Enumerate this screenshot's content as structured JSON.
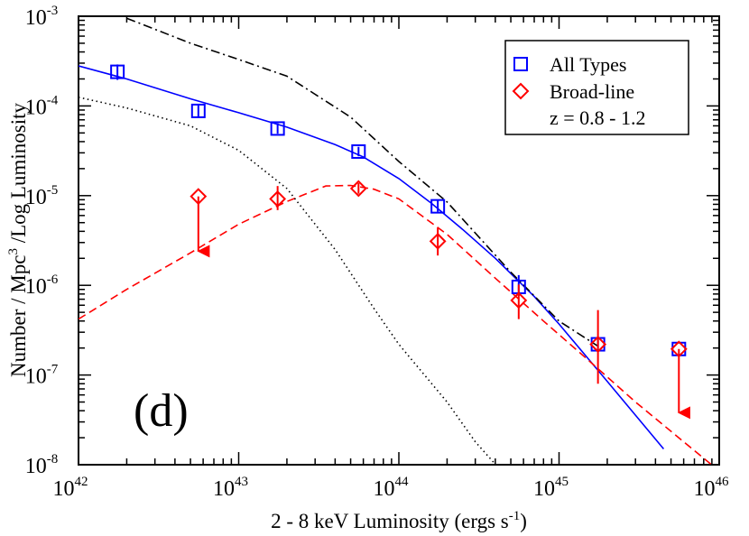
{
  "chart_data": {
    "type": "scatter",
    "panel_label": "(d)",
    "xlabel": {
      "main": "2 - 8 keV Luminosity  (ergs s",
      "sup": "-1",
      "close": ")"
    },
    "ylabel": {
      "main": "Number / Mpc",
      "sup": "3",
      "rest": " /Log Luminosity"
    },
    "x_scale": "log",
    "y_scale": "log",
    "xlim": [
      1e+42,
      1e+46
    ],
    "ylim": [
      1e-08,
      0.001
    ],
    "x_ticks": [
      {
        "value": 1e+42,
        "base": "10",
        "exp": "42"
      },
      {
        "value": 1e+43,
        "base": "10",
        "exp": "43"
      },
      {
        "value": 1e+44,
        "base": "10",
        "exp": "44"
      },
      {
        "value": 1e+45,
        "base": "10",
        "exp": "45"
      },
      {
        "value": 1e+46,
        "base": "10",
        "exp": "46"
      }
    ],
    "y_ticks": [
      {
        "value": 1e-08,
        "base": "10",
        "exp": "-8"
      },
      {
        "value": 1e-07,
        "base": "10",
        "exp": "-7"
      },
      {
        "value": 1e-06,
        "base": "10",
        "exp": "-6"
      },
      {
        "value": 1e-05,
        "base": "10",
        "exp": "-5"
      },
      {
        "value": 0.0001,
        "base": "10",
        "exp": "-4"
      },
      {
        "value": 0.001,
        "base": "10",
        "exp": "-3"
      }
    ],
    "legend": {
      "position": "top-right",
      "entries": [
        {
          "label": "All Types",
          "marker": "square",
          "color": "#0000ff"
        },
        {
          "label": "Broad-line",
          "marker": "diamond",
          "color": "#ff0000"
        }
      ],
      "note": "z = 0.8 - 1.2"
    },
    "series": [
      {
        "name": "All Types",
        "marker": "square",
        "color": "#0000ff",
        "points": [
          {
            "x": 1.75e+42,
            "y": 0.00024,
            "ylo": 0.000195,
            "yhi": 0.00029
          },
          {
            "x": 5.6e+42,
            "y": 8.8e-05,
            "ylo": 7.4e-05,
            "yhi": 0.000105
          },
          {
            "x": 1.75e+43,
            "y": 5.6e-05,
            "ylo": 4.9e-05,
            "yhi": 6.4e-05
          },
          {
            "x": 5.6e+43,
            "y": 3.1e-05,
            "ylo": 2.75e-05,
            "yhi": 3.5e-05
          },
          {
            "x": 1.75e+44,
            "y": 7.6e-06,
            "ylo": 6.6e-06,
            "yhi": 8.8e-06
          },
          {
            "x": 5.6e+44,
            "y": 9.6e-07,
            "ylo": 7.6e-07,
            "yhi": 1.3e-06
          },
          {
            "x": 1.75e+45,
            "y": 2.2e-07,
            "ylo": 1.9e-07,
            "yhi": 2.5e-07
          },
          {
            "x": 5.6e+45,
            "y": 1.95e-07
          }
        ]
      },
      {
        "name": "Broad-line",
        "marker": "diamond",
        "color": "#ff0000",
        "points": [
          {
            "x": 5.6e+42,
            "y": 9.8e-06,
            "upper_limit": true,
            "arrow_to": 2.4e-06
          },
          {
            "x": 1.75e+43,
            "y": 9.2e-06,
            "ylo": 6.9e-06,
            "yhi": 1.28e-05
          },
          {
            "x": 5.6e+43,
            "y": 1.2e-05,
            "ylo": 1.05e-05,
            "yhi": 1.38e-05
          },
          {
            "x": 1.75e+44,
            "y": 3.1e-06,
            "ylo": 2.15e-06,
            "yhi": 4.4e-06
          },
          {
            "x": 5.6e+44,
            "y": 6.8e-07,
            "ylo": 4.2e-07,
            "yhi": 1.02e-06
          },
          {
            "x": 1.75e+45,
            "y": 2.2e-07,
            "ylo": 8e-08,
            "yhi": 5.3e-07
          },
          {
            "x": 5.6e+45,
            "y": 1.95e-07,
            "upper_limit": true,
            "arrow_to": 3.8e-08
          }
        ]
      }
    ],
    "curves": [
      {
        "name": "All Types fit",
        "style": "solid",
        "color": "#0000ff",
        "x": [
          1e+42,
          2e+42,
          5e+42,
          1e+43,
          2e+43,
          4e+43,
          6e+43,
          1e+44,
          1.6e+44,
          2.5e+44,
          4e+44,
          7e+44,
          1e+45,
          2e+45,
          4.5e+45
        ],
        "y": [
          0.00028,
          0.0002,
          0.00012,
          8.4e-05,
          5.8e-05,
          3.7e-05,
          2.7e-05,
          1.55e-05,
          8.2e-06,
          4.2e-06,
          2e-06,
          7.5e-07,
          3.7e-07,
          8.5e-08,
          1.5e-08
        ]
      },
      {
        "name": "Broad-line fit",
        "style": "dashed",
        "color": "#ff0000",
        "x": [
          1e+42,
          2e+42,
          5e+42,
          1e+43,
          2e+43,
          3.5e+43,
          5e+43,
          7e+43,
          1e+44,
          2e+44,
          4e+44,
          8e+44,
          1.5e+45,
          3e+45,
          6e+45,
          1e+46
        ],
        "y": [
          4.2e-07,
          9e-07,
          2.3e-06,
          4.8e-06,
          8.6e-06,
          1.28e-05,
          1.3e-05,
          1.18e-05,
          9.2e-06,
          3.7e-06,
          1.2e-06,
          4e-07,
          1.5e-07,
          5e-08,
          1.8e-08,
          8.5e-09
        ]
      },
      {
        "name": "Dot-dash model",
        "style": "dashdot",
        "color": "#000000",
        "x": [
          2e+42,
          5e+42,
          1e+43,
          2e+43,
          5e+43,
          1e+44,
          2e+44,
          5e+44,
          1e+45,
          1.75e+45
        ],
        "y": [
          0.00095,
          0.0005,
          0.00033,
          0.000215,
          7.5e-05,
          2.4e-05,
          8.5e-06,
          1.4e-06,
          4e-07,
          2.1e-07
        ]
      },
      {
        "name": "Dotted model",
        "style": "dotted",
        "color": "#000000",
        "x": [
          1e+42,
          2e+42,
          5e+42,
          1e+43,
          2e+43,
          4e+43,
          7e+43,
          1e+44,
          2e+44,
          3e+44,
          4.5e+44
        ],
        "y": [
          0.000125,
          9.5e-05,
          6e-05,
          3.2e-05,
          1.2e-05,
          2.5e-06,
          5.5e-07,
          2.2e-07,
          5e-08,
          1.8e-08,
          8e-09
        ]
      }
    ]
  }
}
